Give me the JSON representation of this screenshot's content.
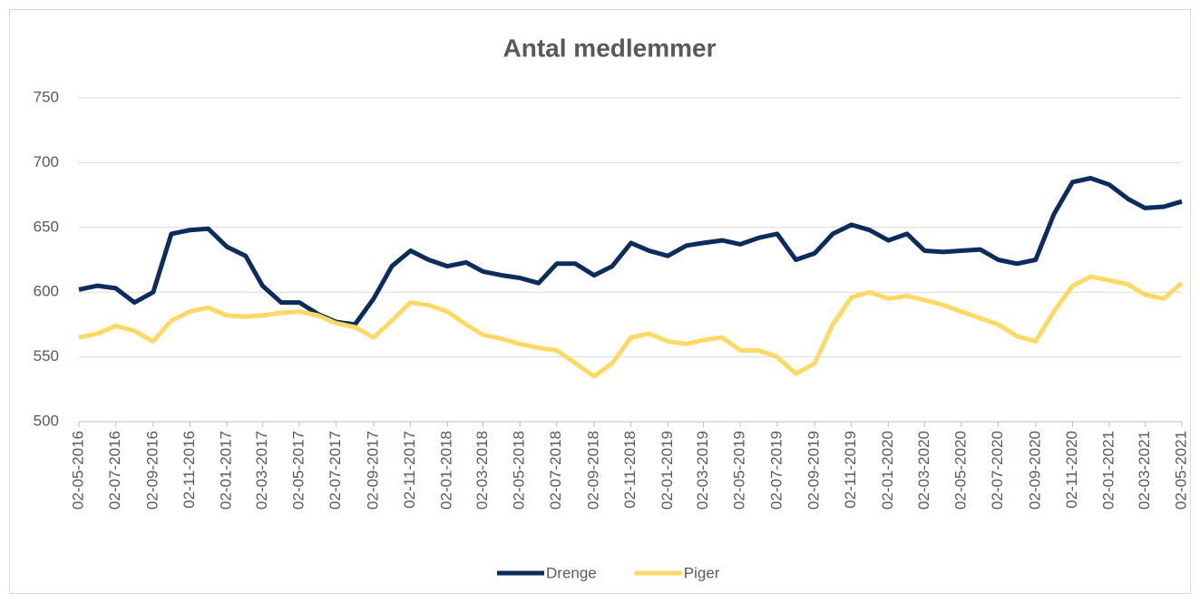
{
  "chart_data": {
    "type": "line",
    "title": "Antal medlemmer",
    "x": [
      "02-05-2016",
      "02-06-2016",
      "02-07-2016",
      "02-08-2016",
      "02-09-2016",
      "02-10-2016",
      "02-11-2016",
      "02-12-2016",
      "02-01-2017",
      "02-02-2017",
      "02-03-2017",
      "02-04-2017",
      "02-05-2017",
      "02-06-2017",
      "02-07-2017",
      "02-08-2017",
      "02-09-2017",
      "02-10-2017",
      "02-11-2017",
      "02-12-2017",
      "02-01-2018",
      "02-02-2018",
      "02-03-2018",
      "02-04-2018",
      "02-05-2018",
      "02-06-2018",
      "02-07-2018",
      "02-08-2018",
      "02-09-2018",
      "02-10-2018",
      "02-11-2018",
      "02-12-2018",
      "02-01-2019",
      "02-02-2019",
      "02-03-2019",
      "02-04-2019",
      "02-05-2019",
      "02-06-2019",
      "02-07-2019",
      "02-08-2019",
      "02-09-2019",
      "02-10-2019",
      "02-11-2019",
      "02-12-2019",
      "02-01-2020",
      "02-02-2020",
      "02-03-2020",
      "02-04-2020",
      "02-05-2020",
      "02-06-2020",
      "02-07-2020",
      "02-08-2020",
      "02-09-2020",
      "02-10-2020",
      "02-11-2020",
      "02-12-2020",
      "02-01-2021",
      "02-02-2021",
      "02-03-2021",
      "02-04-2021",
      "02-05-2021"
    ],
    "series": [
      {
        "name": "Drenge",
        "color": "#0b2c5c",
        "values": [
          602,
          605,
          603,
          592,
          600,
          645,
          648,
          649,
          635,
          628,
          605,
          592,
          592,
          583,
          577,
          575,
          595,
          620,
          632,
          625,
          620,
          623,
          616,
          613,
          611,
          607,
          622,
          622,
          613,
          620,
          638,
          632,
          628,
          636,
          638,
          640,
          637,
          642,
          645,
          625,
          630,
          645,
          652,
          648,
          640,
          645,
          632,
          631,
          632,
          633,
          625,
          622,
          625,
          660,
          685,
          688,
          683,
          672,
          665,
          666,
          670
        ]
      },
      {
        "name": "Piger",
        "color": "#ffd966",
        "values": [
          565,
          568,
          574,
          570,
          562,
          578,
          585,
          588,
          582,
          581,
          582,
          584,
          585,
          582,
          576,
          573,
          565,
          578,
          592,
          590,
          585,
          575,
          567,
          564,
          560,
          557,
          555,
          545,
          535,
          545,
          565,
          568,
          562,
          560,
          563,
          565,
          555,
          555,
          550,
          537,
          545,
          575,
          596,
          600,
          595,
          597,
          594,
          590,
          585,
          580,
          575,
          566,
          562,
          585,
          605,
          612,
          609,
          606,
          598,
          595,
          607
        ]
      }
    ],
    "xlim": [
      "02-05-2016",
      "02-05-2021"
    ],
    "xticks": [
      "02-05-2016",
      "02-07-2016",
      "02-09-2016",
      "02-11-2016",
      "02-01-2017",
      "02-03-2017",
      "02-05-2017",
      "02-07-2017",
      "02-09-2017",
      "02-11-2017",
      "02-01-2018",
      "02-03-2018",
      "02-05-2018",
      "02-07-2018",
      "02-09-2018",
      "02-11-2018",
      "02-01-2019",
      "02-03-2019",
      "02-05-2019",
      "02-07-2019",
      "02-09-2019",
      "02-11-2019",
      "02-01-2020",
      "02-03-2020",
      "02-05-2020",
      "02-07-2020",
      "02-09-2020",
      "02-11-2020",
      "02-01-2021",
      "02-03-2021",
      "02-05-2021"
    ],
    "ylim": [
      500,
      750
    ],
    "yticks": [
      500,
      550,
      600,
      650,
      700,
      750
    ],
    "grid": true,
    "legend": "bottom"
  }
}
